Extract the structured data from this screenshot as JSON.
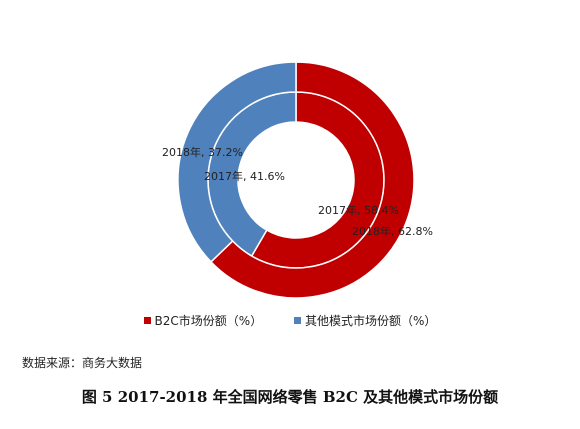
{
  "chart_data": {
    "type": "pie",
    "subtype": "nested-donut",
    "rings": [
      {
        "year": "2017年",
        "slices": [
          {
            "name": "B2C市场份额",
            "value": 58.4,
            "label": "2017年, 58.4%"
          },
          {
            "name": "其他模式市场份额",
            "value": 41.6,
            "label": "2017年, 41.6%"
          }
        ]
      },
      {
        "year": "2018年",
        "slices": [
          {
            "name": "B2C市场份额",
            "value": 62.8,
            "label": "2018年, 62.8%"
          },
          {
            "name": "其他模式市场份额",
            "value": 37.2,
            "label": "2018年, 37.2%"
          }
        ]
      }
    ],
    "legend": [
      {
        "name": "B2C市场份额（%）",
        "color": "#c00000"
      },
      {
        "name": "其他模式市场份额（%）",
        "color": "#4f81bd"
      }
    ],
    "legend_position": "bottom"
  },
  "source": "数据来源：商务大数据",
  "caption": "图 5  2017-2018 年全国网络零售 B2C 及其他模式市场份额"
}
